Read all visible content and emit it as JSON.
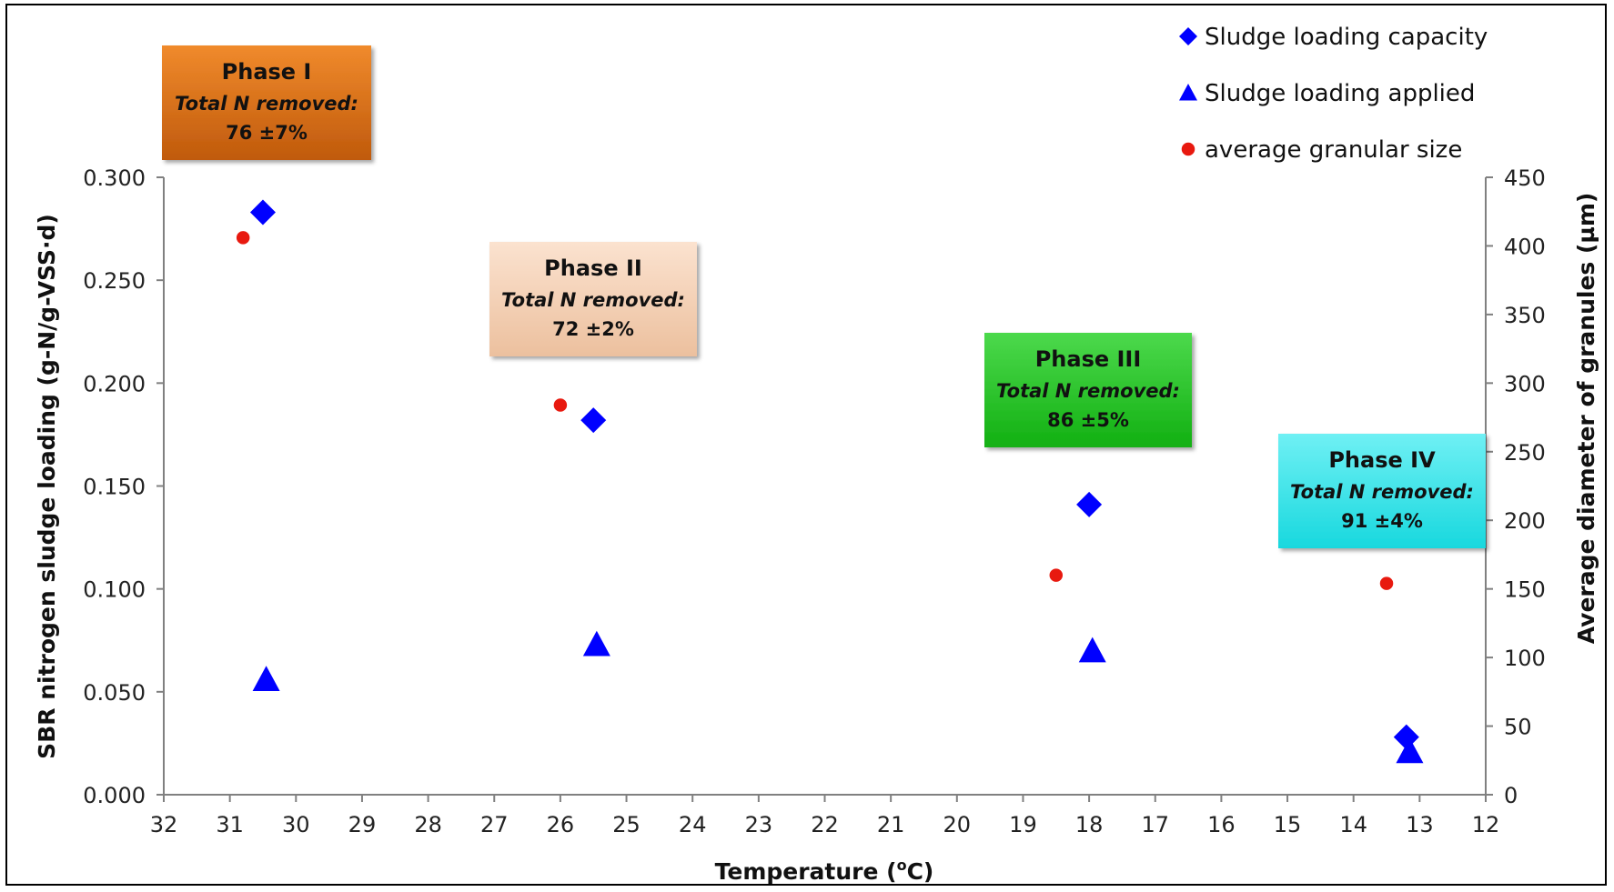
{
  "chart_data": {
    "type": "scatter",
    "xlabel": "Temperature (",
    "xlabel_sup": "o",
    "xlabel_unit": "C)",
    "ylabel": "SBR nitrogen sludge loading (g-N/g-VSS·d)",
    "y2label": "Average diameter of granules (µm)",
    "xlim": [
      32,
      12
    ],
    "ylim": [
      0,
      0.3
    ],
    "y2lim": [
      0,
      450
    ],
    "x_ticks": [
      "32",
      "31",
      "30",
      "29",
      "28",
      "27",
      "26",
      "25",
      "24",
      "23",
      "22",
      "21",
      "20",
      "19",
      "18",
      "17",
      "16",
      "15",
      "14",
      "13",
      "12"
    ],
    "y_ticks": [
      "0.000",
      "0.050",
      "0.100",
      "0.150",
      "0.200",
      "0.250",
      "0.300"
    ],
    "y2_ticks": [
      "0",
      "50",
      "100",
      "150",
      "200",
      "250",
      "300",
      "350",
      "400",
      "450"
    ],
    "legend_position": "top-right",
    "series": [
      {
        "name": "Sludge loading capacity",
        "marker": "diamond",
        "color": "#0000ff",
        "axis": "left",
        "points": [
          [
            30.5,
            0.283
          ],
          [
            25.5,
            0.182
          ],
          [
            18.0,
            0.141
          ],
          [
            13.2,
            0.028
          ]
        ]
      },
      {
        "name": "Sludge loading applied",
        "marker": "triangle",
        "color": "#0000ff",
        "axis": "left",
        "points": [
          [
            30.45,
            0.056
          ],
          [
            25.45,
            0.073
          ],
          [
            17.95,
            0.07
          ],
          [
            13.15,
            0.021
          ]
        ]
      },
      {
        "name": "average granular size",
        "marker": "circle",
        "color": "#e8190f",
        "axis": "right",
        "points": [
          [
            30.8,
            406
          ],
          [
            26.0,
            284
          ],
          [
            18.5,
            160
          ],
          [
            13.5,
            154
          ]
        ]
      }
    ],
    "annotations": [
      {
        "title": "Phase I",
        "subtitle": "Total N removed:",
        "value": "76 ±7%",
        "fill_top": "#f08a2c",
        "fill_bottom": "#c05a0c",
        "near_x": 31.0,
        "near_y": 0.283
      },
      {
        "title": "Phase II",
        "subtitle": "Total N removed:",
        "value": "72 ±2%",
        "fill_top": "#fbe2cf",
        "fill_bottom": "#ecc09e",
        "near_x": 25.5,
        "near_y": 0.182
      },
      {
        "title": "Phase III",
        "subtitle": "Total N removed:",
        "value": "86 ±5%",
        "fill_top": "#4cd94c",
        "fill_bottom": "#12b012",
        "near_x": 18.0,
        "near_y": 0.141
      },
      {
        "title": "Phase IV",
        "subtitle": "Total N removed:",
        "value": "91 ±4%",
        "fill_top": "#6ff0f4",
        "fill_bottom": "#18d8de",
        "near_x": 13.5,
        "near_y": 0.1
      }
    ]
  }
}
